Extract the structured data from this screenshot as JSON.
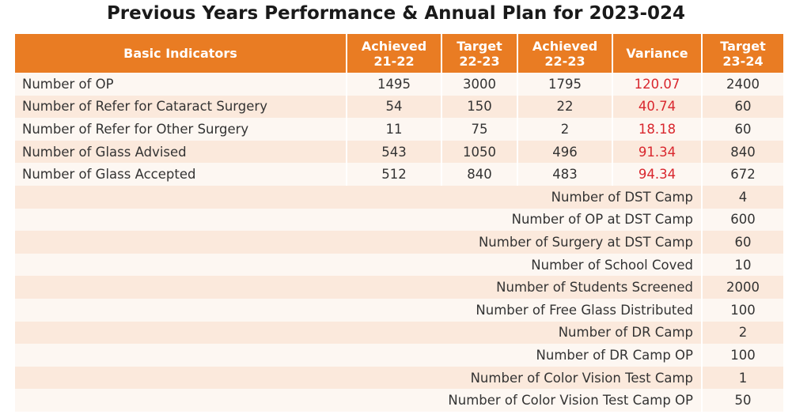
{
  "title": "Previous Years Performance & Annual Plan for 2023-024",
  "header": {
    "indicator": "Basic Indicators",
    "achieved_2122": [
      "Achieved",
      "21-22"
    ],
    "target_2223": [
      "Target",
      "22-23"
    ],
    "achieved_2223": [
      "Achieved",
      "22-23"
    ],
    "variance": "Variance",
    "target_2324": [
      "Target",
      "23-24"
    ]
  },
  "rows": [
    {
      "indicator": "Number of OP",
      "achieved_2122": "1495",
      "target_2223": "3000",
      "achieved_2223": "1795",
      "variance": "120.07",
      "target_2324": "2400"
    },
    {
      "indicator": "Number of Refer for  Cataract Surgery",
      "achieved_2122": "54",
      "target_2223": "150",
      "achieved_2223": "22",
      "variance": "40.74",
      "target_2324": "60"
    },
    {
      "indicator": "Number of Refer for Other Surgery",
      "achieved_2122": "11",
      "target_2223": "75",
      "achieved_2223": "2",
      "variance": "18.18",
      "target_2324": "60"
    },
    {
      "indicator": "Number of Glass Advised",
      "achieved_2122": "543",
      "target_2223": "1050",
      "achieved_2223": "496",
      "variance": "91.34",
      "target_2324": "840"
    },
    {
      "indicator": "Number of Glass Accepted",
      "achieved_2122": "512",
      "target_2223": "840",
      "achieved_2223": "483",
      "variance": "94.34",
      "target_2324": "672"
    }
  ],
  "plan_rows": [
    {
      "label": "Number of DST Camp",
      "target_2324": "4"
    },
    {
      "label": "Number of OP at DST Camp",
      "target_2324": "600"
    },
    {
      "label": "Number of Surgery at DST Camp",
      "target_2324": "60"
    },
    {
      "label": "Number of School Coved",
      "target_2324": "10"
    },
    {
      "label": "Number of Students Screened",
      "target_2324": "2000"
    },
    {
      "label": "Number of Free Glass Distributed",
      "target_2324": "100"
    },
    {
      "label": "Number of DR Camp",
      "target_2324": "2"
    },
    {
      "label": "Number of DR Camp OP",
      "target_2324": "100"
    },
    {
      "label": "Number of Color Vision Test Camp",
      "target_2324": "1"
    },
    {
      "label": "Number of Color Vision Test Camp OP",
      "target_2324": "50"
    }
  ]
}
